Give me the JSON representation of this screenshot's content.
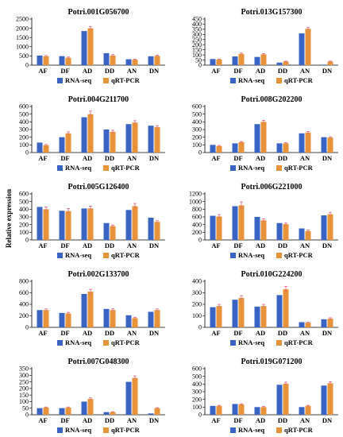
{
  "colors": {
    "rna": "#3a64c4",
    "qrt": "#e8923a",
    "err": "#e0607e"
  },
  "legend": {
    "rna": "RNA-seq",
    "qrt": "qRT-PCR"
  },
  "ylabel": "Relative expression",
  "chart_data": [
    {
      "type": "bar",
      "title": "Potri.001G056700",
      "categories": [
        "AF",
        "DF",
        "AD",
        "DD",
        "AN",
        "DN"
      ],
      "yticks": [
        0,
        500,
        1000,
        1500,
        2000,
        2500
      ],
      "ylim": [
        0,
        2500
      ],
      "series": [
        {
          "name": "RNA-seq",
          "values": [
            520,
            490,
            1850,
            650,
            320,
            480
          ]
        },
        {
          "name": "qRT-PCR",
          "values": [
            480,
            400,
            2000,
            520,
            300,
            500
          ],
          "errors": [
            40,
            40,
            100,
            50,
            30,
            45
          ]
        }
      ]
    },
    {
      "type": "bar",
      "title": "Potri.013G157300",
      "categories": [
        "AF",
        "DF",
        "AD",
        "DD",
        "AN",
        "DN"
      ],
      "yticks": [
        0,
        50,
        100,
        150,
        200,
        250,
        300,
        350,
        400,
        450
      ],
      "ylim": [
        0,
        450
      ],
      "series": [
        {
          "name": "RNA-seq",
          "values": [
            60,
            85,
            80,
            25,
            310,
            5
          ]
        },
        {
          "name": "qRT-PCR",
          "values": [
            55,
            110,
            105,
            35,
            355,
            35
          ],
          "errors": [
            5,
            8,
            8,
            4,
            15,
            5
          ]
        }
      ]
    },
    {
      "type": "bar",
      "title": "Potri.004G211700",
      "categories": [
        "AF",
        "DF",
        "AD",
        "DD",
        "AN",
        "DN"
      ],
      "yticks": [
        0,
        100,
        200,
        300,
        400,
        500,
        600
      ],
      "ylim": [
        0,
        600
      ],
      "series": [
        {
          "name": "RNA-seq",
          "values": [
            130,
            200,
            460,
            300,
            370,
            350
          ]
        },
        {
          "name": "qRT-PCR",
          "values": [
            95,
            250,
            500,
            270,
            390,
            330
          ],
          "errors": [
            10,
            20,
            40,
            20,
            25,
            20
          ]
        }
      ]
    },
    {
      "type": "bar",
      "title": "Potri.008G202200",
      "categories": [
        "AF",
        "DF",
        "AD",
        "DD",
        "AN",
        "DN"
      ],
      "yticks": [
        0,
        100,
        200,
        300,
        400,
        500,
        600
      ],
      "ylim": [
        0,
        600
      ],
      "series": [
        {
          "name": "RNA-seq",
          "values": [
            100,
            120,
            370,
            120,
            250,
            200
          ]
        },
        {
          "name": "qRT-PCR",
          "values": [
            85,
            135,
            400,
            120,
            260,
            195
          ],
          "errors": [
            8,
            8,
            20,
            10,
            15,
            10
          ]
        }
      ]
    },
    {
      "type": "bar",
      "title": "Potri.005G126400",
      "categories": [
        "AF",
        "DF",
        "AD",
        "DD",
        "AN",
        "DN"
      ],
      "yticks": [
        0,
        100,
        200,
        300,
        400,
        500,
        600
      ],
      "ylim": [
        0,
        600
      ],
      "series": [
        {
          "name": "RNA-seq",
          "values": [
            430,
            380,
            410,
            220,
            390,
            290
          ]
        },
        {
          "name": "qRT-PCR",
          "values": [
            400,
            375,
            410,
            180,
            440,
            235
          ],
          "errors": [
            30,
            35,
            30,
            15,
            35,
            15
          ]
        }
      ]
    },
    {
      "type": "bar",
      "title": "Potri.006G221000",
      "categories": [
        "AF",
        "DF",
        "AD",
        "DD",
        "AN",
        "DN"
      ],
      "yticks": [
        0,
        200,
        400,
        600,
        800,
        1000,
        1200
      ],
      "ylim": [
        0,
        1200
      ],
      "series": [
        {
          "name": "RNA-seq",
          "values": [
            630,
            880,
            600,
            440,
            300,
            640
          ]
        },
        {
          "name": "qRT-PCR",
          "values": [
            610,
            900,
            510,
            410,
            230,
            670
          ],
          "errors": [
            50,
            90,
            40,
            30,
            25,
            50
          ]
        }
      ]
    },
    {
      "type": "bar",
      "title": "Potri.002G133700",
      "categories": [
        "AF",
        "DF",
        "AD",
        "DD",
        "AN",
        "DN"
      ],
      "yticks": [
        0,
        200,
        400,
        600,
        800
      ],
      "ylim": [
        0,
        800
      ],
      "series": [
        {
          "name": "RNA-seq",
          "values": [
            300,
            250,
            580,
            320,
            210,
            270
          ]
        },
        {
          "name": "qRT-PCR",
          "values": [
            300,
            240,
            620,
            300,
            160,
            300
          ],
          "errors": [
            20,
            20,
            40,
            20,
            15,
            20
          ]
        }
      ]
    },
    {
      "type": "bar",
      "title": "Potri.010G224200",
      "categories": [
        "AF",
        "DF",
        "AD",
        "DD",
        "AN",
        "DN"
      ],
      "yticks": [
        0,
        100,
        200,
        300,
        400
      ],
      "ylim": [
        0,
        400
      ],
      "series": [
        {
          "name": "RNA-seq",
          "values": [
            175,
            240,
            180,
            280,
            45,
            70
          ]
        },
        {
          "name": "qRT-PCR",
          "values": [
            185,
            255,
            185,
            330,
            40,
            75
          ],
          "errors": [
            15,
            20,
            15,
            25,
            5,
            8
          ]
        }
      ]
    },
    {
      "type": "bar",
      "title": "Potri.007G048300",
      "categories": [
        "AF",
        "DF",
        "AD",
        "DD",
        "AN",
        "DN"
      ],
      "yticks": [
        0,
        50,
        100,
        150,
        200,
        250,
        300,
        350
      ],
      "ylim": [
        0,
        350
      ],
      "series": [
        {
          "name": "RNA-seq",
          "values": [
            50,
            50,
            100,
            20,
            250,
            10
          ]
        },
        {
          "name": "qRT-PCR",
          "values": [
            55,
            55,
            120,
            20,
            280,
            50
          ],
          "errors": [
            4,
            4,
            8,
            3,
            15,
            4
          ]
        }
      ]
    },
    {
      "type": "bar",
      "title": "Potri.019G071200",
      "categories": [
        "AF",
        "DF",
        "AD",
        "DD",
        "AN",
        "DN"
      ],
      "yticks": [
        0,
        100,
        200,
        300,
        400,
        500,
        600
      ],
      "ylim": [
        0,
        600
      ],
      "series": [
        {
          "name": "RNA-seq",
          "values": [
            115,
            140,
            100,
            390,
            100,
            380
          ]
        },
        {
          "name": "qRT-PCR",
          "values": [
            115,
            135,
            100,
            405,
            115,
            410
          ],
          "errors": [
            8,
            8,
            8,
            20,
            8,
            20
          ]
        }
      ]
    }
  ]
}
